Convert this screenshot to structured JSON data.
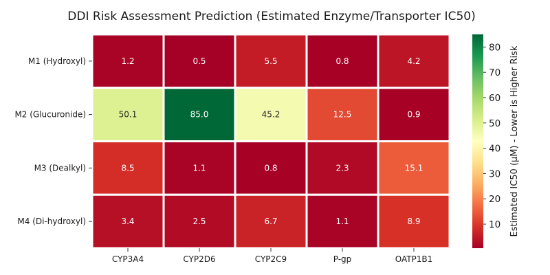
{
  "chart_data": {
    "type": "heatmap",
    "title": "DDI Risk Assessment Prediction (Estimated Enzyme/Transporter IC50)",
    "rows": [
      "M1 (Hydroxyl)",
      "M2 (Glucuronide)",
      "M3 (Dealkyl)",
      "M4 (Di-hydroxyl)"
    ],
    "columns": [
      "CYP3A4",
      "CYP2D6",
      "CYP2C9",
      "P-gp",
      "OATP1B1"
    ],
    "values": [
      [
        1.2,
        0.5,
        5.5,
        0.8,
        4.2
      ],
      [
        50.1,
        85.0,
        45.2,
        12.5,
        0.9
      ],
      [
        8.5,
        1.1,
        0.8,
        2.3,
        15.1
      ],
      [
        3.4,
        2.5,
        6.7,
        1.1,
        8.9
      ]
    ],
    "colorbar": {
      "label": "Estimated IC50 (μM) - Lower is Higher Risk",
      "ticks": [
        10,
        20,
        30,
        40,
        50,
        60,
        70,
        80
      ],
      "range": [
        0.5,
        85.0
      ],
      "colormap": "RdYlGn"
    }
  }
}
